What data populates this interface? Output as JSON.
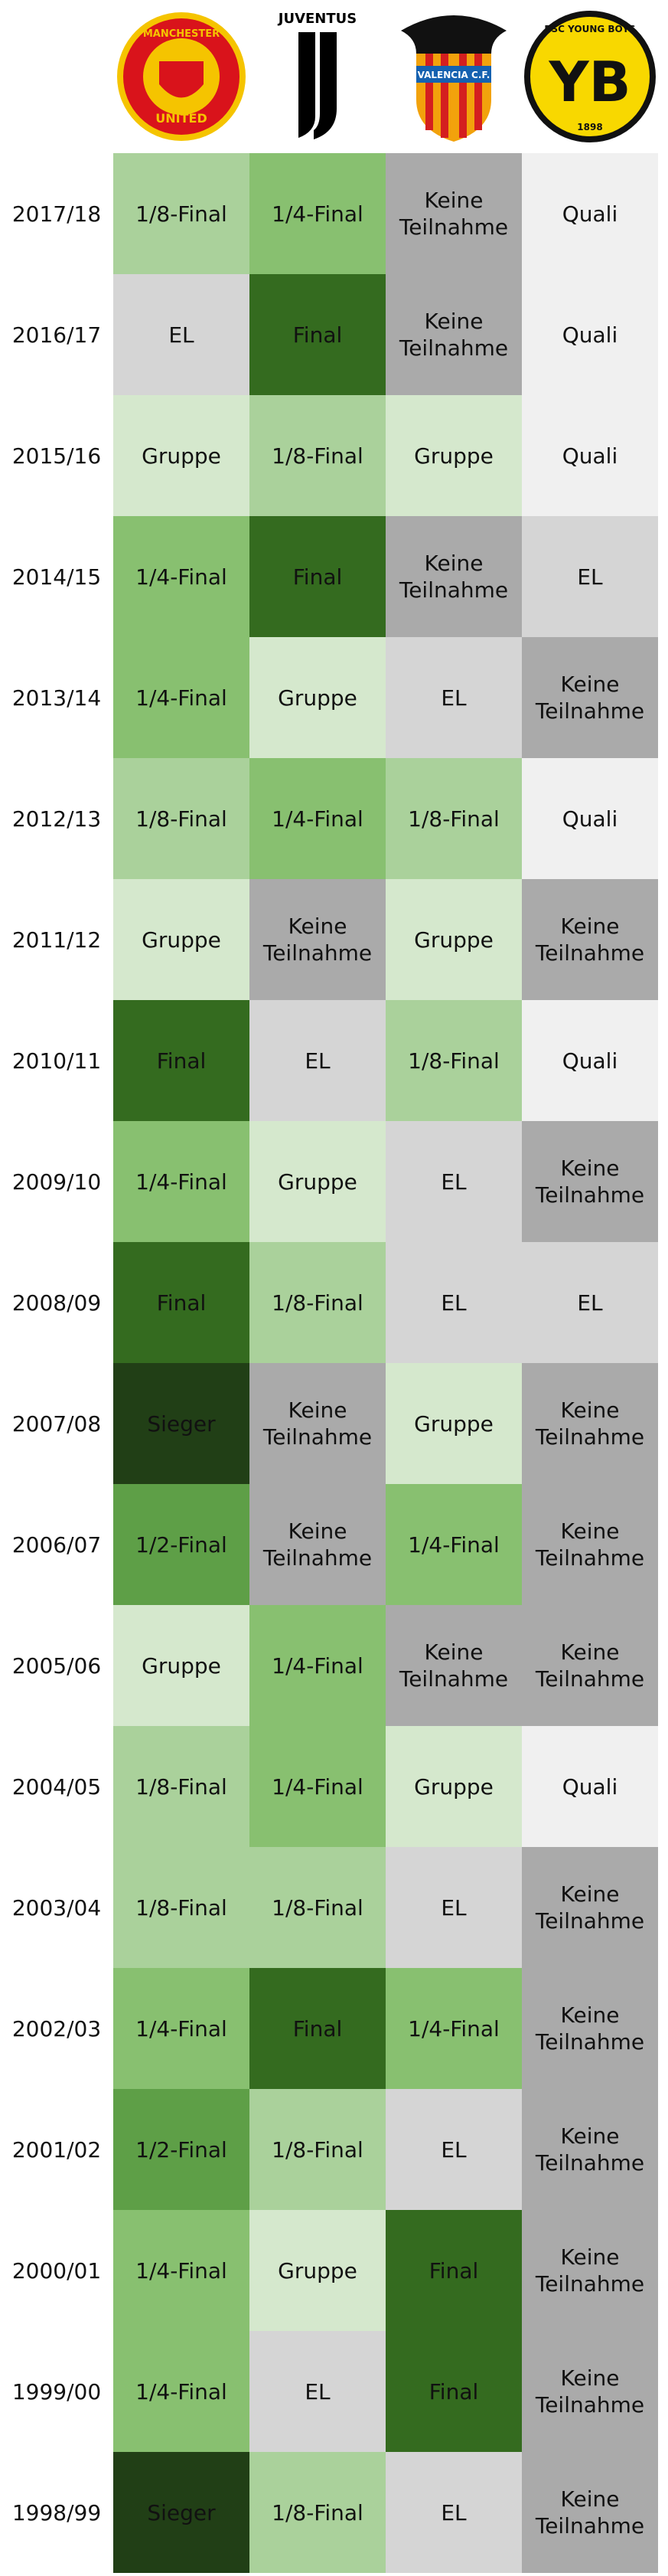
{
  "logos": [
    [
      "MANCHESTER",
      "UNITED"
    ],
    [
      "JUVENTUS"
    ],
    [
      "VALENCIA C.F."
    ],
    [
      "BSC YOUNG BOYS",
      "YB",
      "1898"
    ]
  ],
  "colors": {
    "Sieger": "#213f16",
    "Final": "#346b1f",
    "1/2-Final": "#5e9f47",
    "1/4-Final": "#88c070",
    "1/8-Final": "#aad19b",
    "Gruppe": "#d5e8cd",
    "EL": "#d5d5d5",
    "Keine Teilnahme": "#aaaaaa",
    "Quali": "#f0f0f0"
  },
  "table": {
    "rows": [
      [
        "2017/18",
        "1/8-Final",
        "1/4-Final",
        "Keine Teilnahme",
        "Quali"
      ],
      [
        "2016/17",
        "EL",
        "Final",
        "Keine Teilnahme",
        "Quali"
      ],
      [
        "2015/16",
        "Gruppe",
        "1/8-Final",
        "Gruppe",
        "Quali"
      ],
      [
        "2014/15",
        "1/4-Final",
        "Final",
        "Keine Teilnahme",
        "EL"
      ],
      [
        "2013/14",
        "1/4-Final",
        "Gruppe",
        "EL",
        "Keine Teilnahme"
      ],
      [
        "2012/13",
        "1/8-Final",
        "1/4-Final",
        "1/8-Final",
        "Quali"
      ],
      [
        "2011/12",
        "Gruppe",
        "Keine Teilnahme",
        "Gruppe",
        "Keine Teilnahme"
      ],
      [
        "2010/11",
        "Final",
        "EL",
        "1/8-Final",
        "Quali"
      ],
      [
        "2009/10",
        "1/4-Final",
        "Gruppe",
        "EL",
        "Keine Teilnahme"
      ],
      [
        "2008/09",
        "Final",
        "1/8-Final",
        "EL",
        "EL"
      ],
      [
        "2007/08",
        "Sieger",
        "Keine Teilnahme",
        "Gruppe",
        "Keine Teilnahme"
      ],
      [
        "2006/07",
        "1/2-Final",
        "Keine Teilnahme",
        "1/4-Final",
        "Keine Teilnahme"
      ],
      [
        "2005/06",
        "Gruppe",
        "1/4-Final",
        "Keine Teilnahme",
        "Keine Teilnahme"
      ],
      [
        "2004/05",
        "1/8-Final",
        "1/4-Final",
        "Gruppe",
        "Quali"
      ],
      [
        "2003/04",
        "1/8-Final",
        "1/8-Final",
        "EL",
        "Keine Teilnahme"
      ],
      [
        "2002/03",
        "1/4-Final",
        "Final",
        "1/4-Final",
        "Keine Teilnahme"
      ],
      [
        "2001/02",
        "1/2-Final",
        "1/8-Final",
        "EL",
        "Keine Teilnahme"
      ],
      [
        "2000/01",
        "1/4-Final",
        "Gruppe",
        "Final",
        "Keine Teilnahme"
      ],
      [
        "1999/00",
        "1/4-Final",
        "EL",
        "Final",
        "Keine Teilnahme"
      ],
      [
        "1998/99",
        "Sieger",
        "1/8-Final",
        "EL",
        "Keine Teilnahme"
      ]
    ]
  }
}
